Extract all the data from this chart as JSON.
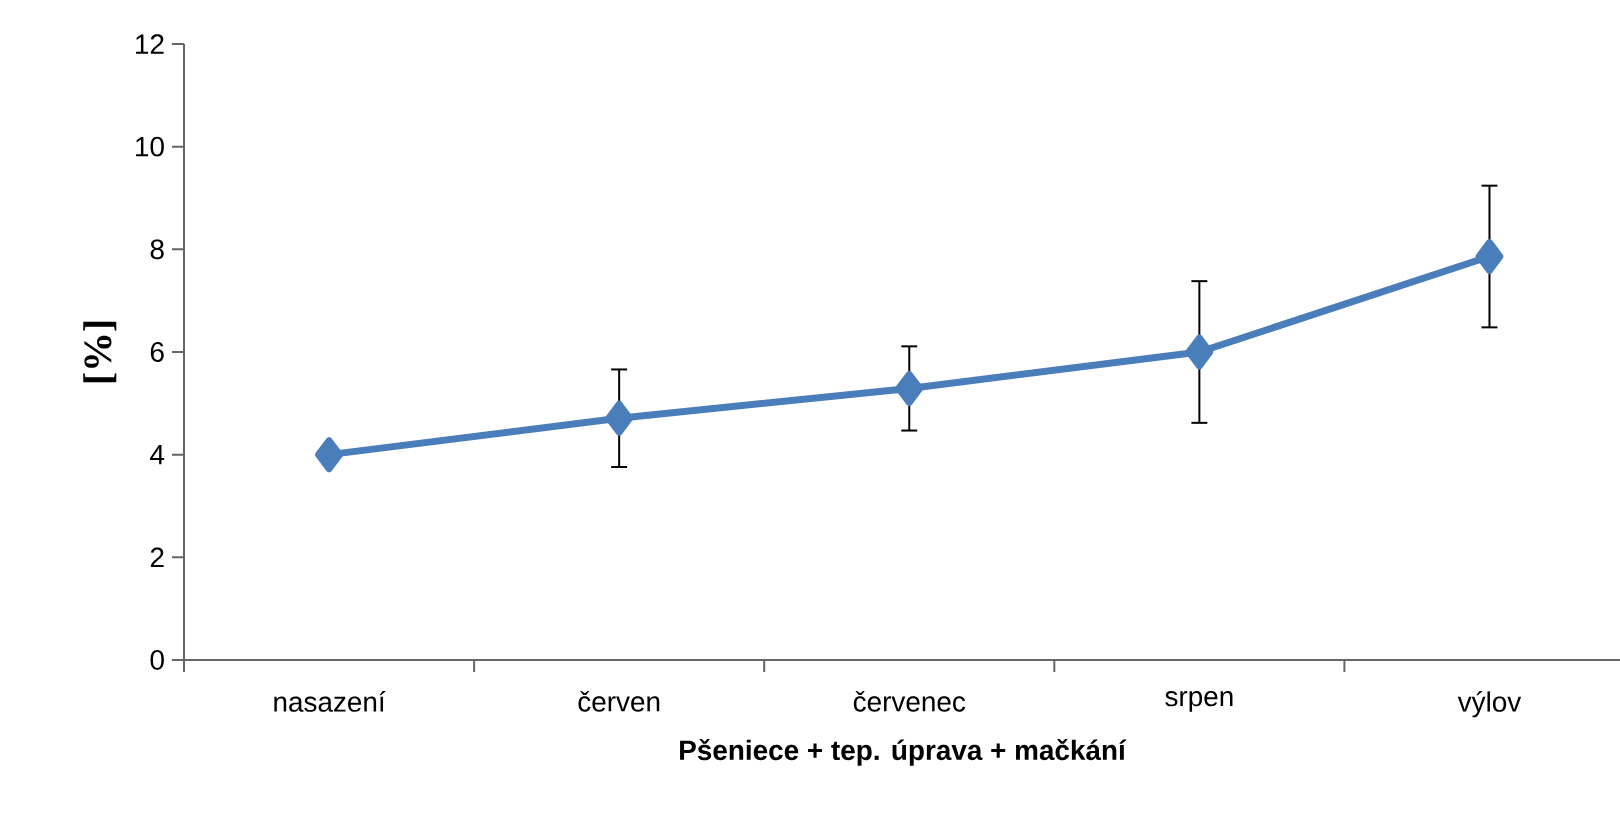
{
  "chart_data": {
    "type": "line",
    "xlabel": "Pšeniece + tep. úprava + mačkání",
    "ylabel": "[%]",
    "categories": [
      "nasazení",
      "červen",
      "červenec",
      "srpen",
      "výlov"
    ],
    "values": [
      4.0,
      4.71,
      5.29,
      6.0,
      7.86
    ],
    "errors": [
      null,
      0.95,
      0.82,
      1.38,
      1.38
    ],
    "color": "#4a7ebb",
    "marker": "diamond",
    "line_style": "solid",
    "ylim": [
      0,
      12
    ],
    "yticks": [
      0,
      2,
      4,
      6,
      8,
      10,
      12
    ]
  }
}
